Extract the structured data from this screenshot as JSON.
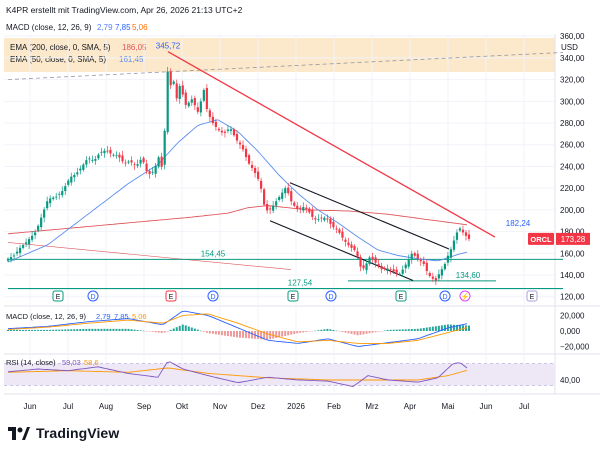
{
  "header": {
    "caption": "K4PR erstellt mit TradingView.com, Apr 26, 2026 21:13 UTC+2",
    "macd_title": "MACD (close, 12, 26, 9)",
    "macd_values": [
      "2,79",
      "7,85",
      "5,06"
    ]
  },
  "legend": {
    "ema200_label": "EMA (200, close, 0, SMA, 5)",
    "ema200_value": "186,05",
    "ema50_label": "EMA (50, close, 0, SMA, 5)",
    "ema50_value": "161,45"
  },
  "colors": {
    "candle_up": "#089981",
    "candle_down": "#f23645",
    "ema50": "#5b8def",
    "ema200": "#e0565b",
    "trend_red": "#f23645",
    "channel": "#131722",
    "support": "#089981",
    "macd_line": "#2962ff",
    "signal_line": "#ff9800",
    "rsi_line": "#7e57c2",
    "rsi_band": "#ede7f6",
    "legend_bg": "#fbe0b8",
    "orcl_tag": "#f23645"
  },
  "chart_data": [
    {
      "type": "candlestick",
      "title": "ORCL",
      "currency": "USD",
      "x_ticks": [
        "Jun",
        "Jul",
        "Aug",
        "Sep",
        "Okt",
        "Nov",
        "Dez",
        "2026",
        "Feb",
        "Mrz",
        "Apr",
        "Mai",
        "Jun",
        "Jul"
      ],
      "y_ticks": [
        120,
        140,
        160,
        180,
        200,
        220,
        240,
        260,
        280,
        300,
        320,
        340,
        360
      ],
      "ylim": [
        117,
        362
      ],
      "grid": true,
      "close_path": [
        [
          0,
          155
        ],
        [
          6,
          158
        ],
        [
          12,
          165
        ],
        [
          18,
          170
        ],
        [
          24,
          176
        ],
        [
          28,
          180
        ],
        [
          34,
          195
        ],
        [
          40,
          210
        ],
        [
          48,
          212
        ],
        [
          55,
          218
        ],
        [
          62,
          230
        ],
        [
          68,
          233
        ],
        [
          74,
          240
        ],
        [
          80,
          248
        ],
        [
          86,
          245
        ],
        [
          92,
          253
        ],
        [
          98,
          255
        ],
        [
          104,
          251
        ],
        [
          110,
          250
        ],
        [
          116,
          243
        ],
        [
          122,
          245
        ],
        [
          128,
          240
        ],
        [
          134,
          248
        ],
        [
          140,
          232
        ],
        [
          146,
          236
        ],
        [
          152,
          252
        ],
        [
          155,
          230
        ],
        [
          159,
          332
        ],
        [
          162,
          312
        ],
        [
          165,
          324
        ],
        [
          168,
          300
        ],
        [
          172,
          315
        ],
        [
          178,
          296
        ],
        [
          184,
          302
        ],
        [
          190,
          290
        ],
        [
          196,
          311
        ],
        [
          199,
          292
        ],
        [
          204,
          281
        ],
        [
          210,
          274
        ],
        [
          216,
          270
        ],
        [
          222,
          276
        ],
        [
          228,
          265
        ],
        [
          234,
          258
        ],
        [
          240,
          244
        ],
        [
          246,
          236
        ],
        [
          252,
          225
        ],
        [
          256,
          205
        ],
        [
          260,
          198
        ],
        [
          266,
          205
        ],
        [
          272,
          213
        ],
        [
          278,
          221
        ],
        [
          284,
          206
        ],
        [
          290,
          200
        ],
        [
          296,
          203
        ],
        [
          302,
          197
        ],
        [
          306,
          191
        ],
        [
          312,
          192
        ],
        [
          318,
          193
        ],
        [
          324,
          185
        ],
        [
          330,
          181
        ],
        [
          336,
          172
        ],
        [
          342,
          166
        ],
        [
          348,
          162
        ],
        [
          352,
          148
        ],
        [
          356,
          146
        ],
        [
          362,
          157
        ],
        [
          368,
          151
        ],
        [
          374,
          145
        ],
        [
          380,
          146
        ],
        [
          386,
          143
        ],
        [
          392,
          141
        ],
        [
          398,
          150
        ],
        [
          404,
          160
        ],
        [
          410,
          155
        ],
        [
          416,
          150
        ],
        [
          420,
          141
        ],
        [
          424,
          137
        ],
        [
          428,
          135
        ],
        [
          432,
          143
        ],
        [
          436,
          148
        ],
        [
          440,
          158
        ],
        [
          444,
          166
        ],
        [
          448,
          178
        ],
        [
          452,
          183
        ],
        [
          456,
          178
        ],
        [
          461,
          173.28
        ]
      ],
      "ema50_path": [
        [
          0,
          152
        ],
        [
          40,
          168
        ],
        [
          80,
          196
        ],
        [
          120,
          224
        ],
        [
          150,
          242
        ],
        [
          170,
          262
        ],
        [
          190,
          278
        ],
        [
          210,
          283
        ],
        [
          230,
          272
        ],
        [
          250,
          254
        ],
        [
          270,
          233
        ],
        [
          290,
          215
        ],
        [
          310,
          200
        ],
        [
          330,
          188
        ],
        [
          350,
          175
        ],
        [
          370,
          163
        ],
        [
          390,
          158
        ],
        [
          410,
          155
        ],
        [
          430,
          153
        ],
        [
          450,
          159
        ],
        [
          461,
          161.45
        ]
      ],
      "ema200_path": [
        [
          0,
          178
        ],
        [
          60,
          183
        ],
        [
          120,
          188
        ],
        [
          180,
          193
        ],
        [
          220,
          197
        ],
        [
          240,
          202
        ],
        [
          260,
          204
        ],
        [
          300,
          200
        ],
        [
          340,
          199
        ],
        [
          380,
          196
        ],
        [
          420,
          191
        ],
        [
          461,
          186.05
        ]
      ],
      "trendlines": {
        "falling_resistance": {
          "from": [
            160,
            345.72
          ],
          "to": [
            487,
            175
          ]
        },
        "channel_upper": {
          "from": [
            282,
            225
          ],
          "to": [
            441,
            164
          ]
        },
        "channel_lower": {
          "from": [
            262,
            190
          ],
          "to": [
            405,
            135
          ]
        },
        "support_top": {
          "from": [
            0,
            154.45
          ],
          "to": [
            555,
            154.45
          ]
        },
        "support_mid": {
          "from": [
            340,
            134.6
          ],
          "to": [
            488,
            134.6
          ]
        },
        "support_bottom": {
          "from": [
            0,
            127.54
          ],
          "to": [
            555,
            127.54
          ]
        },
        "dashed_ray": {
          "from": [
            0,
            320
          ],
          "to": [
            555,
            345
          ]
        },
        "red_ray": {
          "from": [
            0,
            170
          ],
          "to": [
            283,
            145
          ]
        }
      },
      "annotations": [
        {
          "text": "345,72",
          "x": 160,
          "y": 345.72
        },
        {
          "text": "182,24",
          "x": 510,
          "y": 182.24
        },
        {
          "text": "154,45",
          "x": 205,
          "y": 154.45
        },
        {
          "text": "127,54",
          "x": 292,
          "y": 127.54
        },
        {
          "text": "134,60",
          "x": 460,
          "y": 134.6
        }
      ],
      "last_price_label": "ORCL",
      "last_price": "173,28",
      "last_price_value": 173.28,
      "events": [
        {
          "kind": "E",
          "x": 50
        },
        {
          "kind": "D",
          "x": 85
        },
        {
          "kind": "E",
          "x": 163
        },
        {
          "kind": "D",
          "x": 205
        },
        {
          "kind": "E",
          "x": 285
        },
        {
          "kind": "D",
          "x": 323
        },
        {
          "kind": "E",
          "x": 393
        },
        {
          "kind": "D",
          "x": 437
        },
        {
          "kind": "⚡",
          "x": 457
        },
        {
          "kind": "E",
          "x": 524
        }
      ]
    },
    {
      "type": "line",
      "title": "MACD (close, 12, 26, 9)",
      "legend_values": [
        "2,79",
        "7,85",
        "5,06"
      ],
      "y_ticks": [
        "20,000",
        "0,000",
        "−20,000"
      ],
      "y_tick_values": [
        20,
        0,
        -20
      ],
      "ylim": [
        -27,
        27
      ],
      "series": [
        {
          "values_path": [
            [
              0,
              3
            ],
            [
              40,
              6
            ],
            [
              80,
              12
            ],
            [
              120,
              16
            ],
            [
              155,
              8
            ],
            [
              175,
              26
            ],
            [
              200,
              20
            ],
            [
              230,
              4
            ],
            [
              260,
              -12
            ],
            [
              290,
              -16
            ],
            [
              320,
              -10
            ],
            [
              350,
              -20
            ],
            [
              380,
              -15
            ],
            [
              410,
              -10
            ],
            [
              440,
              4
            ],
            [
              461,
              10
            ]
          ]
        },
        {
          "values_path": [
            [
              0,
              2
            ],
            [
              40,
              5
            ],
            [
              80,
              10
            ],
            [
              120,
              14
            ],
            [
              155,
              10
            ],
            [
              175,
              20
            ],
            [
              200,
              22
            ],
            [
              230,
              10
            ],
            [
              260,
              -4
            ],
            [
              290,
              -14
            ],
            [
              320,
              -12
            ],
            [
              350,
              -16
            ],
            [
              380,
              -16
            ],
            [
              410,
              -12
            ],
            [
              440,
              -2
            ],
            [
              461,
              5
            ]
          ]
        }
      ]
    },
    {
      "type": "line",
      "title": "RSI (14, close)",
      "legend_values": [
        "59,03",
        "58,6"
      ],
      "y_ticks": [
        "40,00"
      ],
      "y_tick_values": [
        40
      ],
      "band": [
        30,
        70
      ],
      "ylim": [
        18,
        82
      ],
      "series": [
        {
          "values_path": [
            [
              0,
              55
            ],
            [
              30,
              60
            ],
            [
              60,
              57
            ],
            [
              90,
              64
            ],
            [
              120,
              52
            ],
            [
              150,
              45
            ],
            [
              160,
              75
            ],
            [
              175,
              60
            ],
            [
              200,
              48
            ],
            [
              230,
              35
            ],
            [
              260,
              45
            ],
            [
              290,
              40
            ],
            [
              320,
              38
            ],
            [
              345,
              28
            ],
            [
              360,
              48
            ],
            [
              380,
              40
            ],
            [
              410,
              36
            ],
            [
              430,
              44
            ],
            [
              445,
              70
            ],
            [
              452,
              72
            ],
            [
              461,
              59.03
            ]
          ]
        },
        {
          "values_path": [
            [
              0,
              54
            ],
            [
              60,
              57
            ],
            [
              120,
              54
            ],
            [
              160,
              62
            ],
            [
              200,
              52
            ],
            [
              260,
              44
            ],
            [
              320,
              40
            ],
            [
              360,
              40
            ],
            [
              410,
              40
            ],
            [
              440,
              48
            ],
            [
              461,
              58.6
            ]
          ]
        }
      ]
    }
  ],
  "branding": {
    "logo_text": "TradingView"
  }
}
